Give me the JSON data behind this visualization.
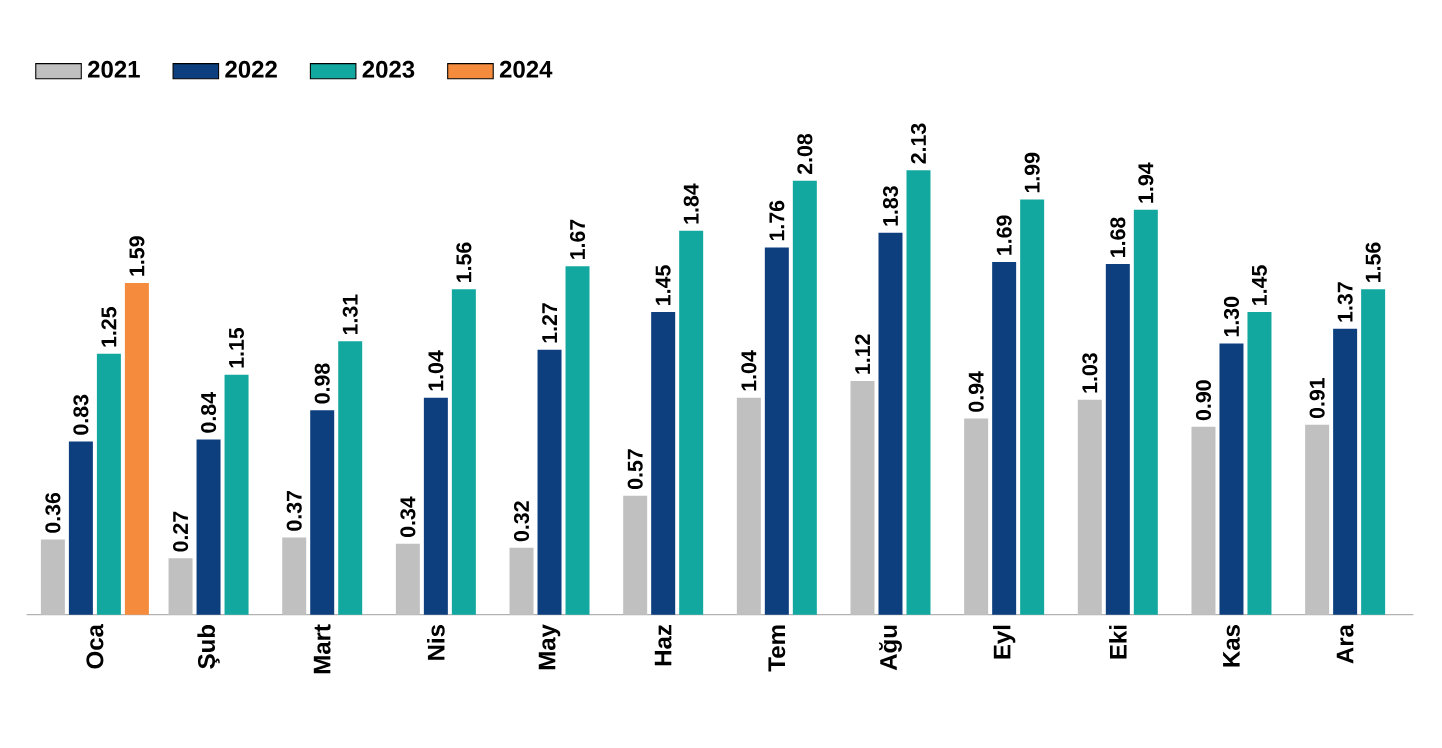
{
  "chart_data": {
    "type": "bar",
    "categories": [
      "Oca",
      "Şub",
      "Mart",
      "Nis",
      "May",
      "Haz",
      "Tem",
      "Ağu",
      "Eyl",
      "Eki",
      "Kas",
      "Ara"
    ],
    "series": [
      {
        "name": "2021",
        "color": "#c0c0c0",
        "values": [
          0.36,
          0.27,
          0.37,
          0.34,
          0.32,
          0.57,
          1.04,
          1.12,
          0.94,
          1.03,
          0.9,
          0.91
        ],
        "value_labels": [
          "0.36",
          "0.27",
          "0.37",
          "0.34",
          "0.32",
          "0.57",
          "1.04",
          "1.12",
          "0.94",
          "1.03",
          "0.90",
          "0.91"
        ]
      },
      {
        "name": "2022",
        "color": "#0d3f7f",
        "values": [
          0.83,
          0.84,
          0.98,
          1.04,
          1.27,
          1.45,
          1.76,
          1.83,
          1.69,
          1.68,
          1.3,
          1.37
        ],
        "value_labels": [
          "0.83",
          "0.84",
          "0.98",
          "1.04",
          "1.27",
          "1.45",
          "1.76",
          "1.83",
          "1.69",
          "1.68",
          "1.30",
          "1.37"
        ]
      },
      {
        "name": "2023",
        "color": "#12a8a0",
        "values": [
          1.25,
          1.15,
          1.31,
          1.56,
          1.67,
          1.84,
          2.08,
          2.13,
          1.99,
          1.94,
          1.45,
          1.56
        ],
        "value_labels": [
          "1.25",
          "1.15",
          "1.31",
          "1.56",
          "1.67",
          "1.84",
          "2.08",
          "2.13",
          "1.99",
          "1.94",
          "1.45",
          "1.56"
        ]
      },
      {
        "name": "2024",
        "color": "#f58b3c",
        "values": [
          1.59,
          null,
          null,
          null,
          null,
          null,
          null,
          null,
          null,
          null,
          null,
          null
        ],
        "value_labels": [
          "1.59",
          null,
          null,
          null,
          null,
          null,
          null,
          null,
          null,
          null,
          null,
          null
        ]
      }
    ],
    "legend": "top left"
  }
}
